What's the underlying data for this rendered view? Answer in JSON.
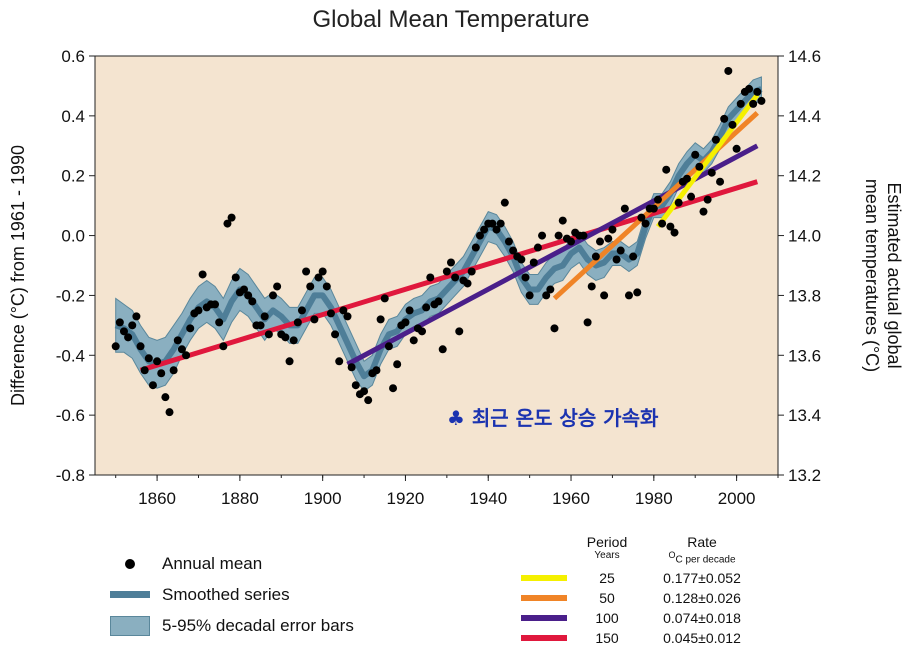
{
  "chart_data": {
    "type": "scatter",
    "title": "Global Mean Temperature",
    "ylabel": "Difference (°C) from 1961 - 1990",
    "ylabel_right": "Estimated actual global mean temperatures (°C)",
    "xlim": [
      1845,
      2010
    ],
    "ylim": [
      -0.8,
      0.6
    ],
    "ylim_right": [
      13.2,
      14.6
    ],
    "xticks": [
      "1860",
      "1880",
      "1900",
      "1920",
      "1940",
      "1960",
      "1980",
      "2000"
    ],
    "yticks": [
      "0.6",
      "0.4",
      "0.2",
      "0.0",
      "-0.2",
      "-0.4",
      "-0.6",
      "-0.8"
    ],
    "yticks_right": [
      "14.6",
      "14.4",
      "14.2",
      "14.0",
      "13.8",
      "13.6",
      "13.4",
      "13.2"
    ],
    "annotation": "♣ 최근 온도 상승 가속화",
    "colors": {
      "plot_bg": "#f4e4d0",
      "smoothed": "#4e7e98",
      "band": "#8aafc0",
      "annotation": "#1b33b0"
    },
    "annual_mean": {
      "name": "Annual mean",
      "x": [
        1850,
        1851,
        1852,
        1853,
        1854,
        1855,
        1856,
        1857,
        1858,
        1859,
        1860,
        1861,
        1862,
        1863,
        1864,
        1865,
        1866,
        1867,
        1868,
        1869,
        1870,
        1871,
        1872,
        1873,
        1874,
        1875,
        1876,
        1877,
        1878,
        1879,
        1880,
        1881,
        1882,
        1883,
        1884,
        1885,
        1886,
        1887,
        1888,
        1889,
        1890,
        1891,
        1892,
        1893,
        1894,
        1895,
        1896,
        1897,
        1898,
        1899,
        1900,
        1901,
        1902,
        1903,
        1904,
        1905,
        1906,
        1907,
        1908,
        1909,
        1910,
        1911,
        1912,
        1913,
        1914,
        1915,
        1916,
        1917,
        1918,
        1919,
        1920,
        1921,
        1922,
        1923,
        1924,
        1925,
        1926,
        1927,
        1928,
        1929,
        1930,
        1931,
        1932,
        1933,
        1934,
        1935,
        1936,
        1937,
        1938,
        1939,
        1940,
        1941,
        1942,
        1943,
        1944,
        1945,
        1946,
        1947,
        1948,
        1949,
        1950,
        1951,
        1952,
        1953,
        1954,
        1955,
        1956,
        1957,
        1958,
        1959,
        1960,
        1961,
        1962,
        1963,
        1964,
        1965,
        1966,
        1967,
        1968,
        1969,
        1970,
        1971,
        1972,
        1973,
        1974,
        1975,
        1976,
        1977,
        1978,
        1979,
        1980,
        1981,
        1982,
        1983,
        1984,
        1985,
        1986,
        1987,
        1988,
        1989,
        1990,
        1991,
        1992,
        1993,
        1994,
        1995,
        1996,
        1997,
        1998,
        1999,
        2000,
        2001,
        2002,
        2003,
        2004,
        2005,
        2006
      ],
      "y": [
        -0.37,
        -0.29,
        -0.32,
        -0.34,
        -0.3,
        -0.27,
        -0.37,
        -0.45,
        -0.41,
        -0.5,
        -0.42,
        -0.46,
        -0.54,
        -0.59,
        -0.45,
        -0.35,
        -0.38,
        -0.4,
        -0.31,
        -0.26,
        -0.25,
        -0.13,
        -0.24,
        -0.23,
        -0.23,
        -0.29,
        -0.37,
        0.04,
        0.06,
        -0.14,
        -0.19,
        -0.18,
        -0.2,
        -0.22,
        -0.3,
        -0.3,
        -0.27,
        -0.33,
        -0.2,
        -0.17,
        -0.33,
        -0.34,
        -0.42,
        -0.35,
        -0.29,
        -0.25,
        -0.12,
        -0.17,
        -0.28,
        -0.14,
        -0.12,
        -0.17,
        -0.26,
        -0.33,
        -0.42,
        -0.25,
        -0.27,
        -0.44,
        -0.5,
        -0.53,
        -0.52,
        -0.55,
        -0.46,
        -0.45,
        -0.28,
        -0.21,
        -0.37,
        -0.51,
        -0.43,
        -0.3,
        -0.29,
        -0.25,
        -0.35,
        -0.31,
        -0.32,
        -0.24,
        -0.14,
        -0.23,
        -0.22,
        -0.38,
        -0.12,
        -0.09,
        -0.14,
        -0.32,
        -0.15,
        -0.16,
        -0.12,
        -0.04,
        0.0,
        0.02,
        0.04,
        0.04,
        0.02,
        0.04,
        0.11,
        -0.02,
        -0.05,
        -0.07,
        -0.08,
        -0.14,
        -0.2,
        -0.09,
        -0.04,
        0.0,
        -0.2,
        -0.18,
        -0.31,
        0.0,
        0.05,
        -0.01,
        -0.02,
        0.01,
        0.0,
        0.0,
        -0.29,
        -0.17,
        -0.07,
        -0.02,
        -0.2,
        -0.01,
        0.02,
        -0.08,
        -0.05,
        0.09,
        -0.2,
        -0.07,
        -0.19,
        0.06,
        0.04,
        0.09,
        0.09,
        0.12,
        0.04,
        0.22,
        0.03,
        0.01,
        0.11,
        0.18,
        0.19,
        0.13,
        0.27,
        0.23,
        0.08,
        0.12,
        0.21,
        0.32,
        0.18,
        0.39,
        0.55,
        0.37,
        0.29,
        0.44,
        0.48,
        0.49,
        0.44,
        0.48,
        0.45
      ]
    },
    "smoothed": {
      "name": "Smoothed series",
      "x": [
        1850,
        1852,
        1854,
        1856,
        1858,
        1860,
        1862,
        1864,
        1866,
        1868,
        1870,
        1872,
        1874,
        1876,
        1878,
        1880,
        1882,
        1884,
        1886,
        1888,
        1890,
        1892,
        1894,
        1896,
        1898,
        1900,
        1902,
        1904,
        1906,
        1908,
        1910,
        1912,
        1914,
        1916,
        1918,
        1920,
        1922,
        1924,
        1926,
        1928,
        1930,
        1932,
        1934,
        1936,
        1938,
        1940,
        1942,
        1944,
        1946,
        1948,
        1950,
        1952,
        1954,
        1956,
        1958,
        1960,
        1962,
        1964,
        1966,
        1968,
        1970,
        1972,
        1974,
        1976,
        1978,
        1980,
        1982,
        1984,
        1986,
        1988,
        1990,
        1992,
        1994,
        1996,
        1998,
        2000,
        2002,
        2004,
        2006
      ],
      "y": [
        -0.3,
        -0.31,
        -0.33,
        -0.38,
        -0.42,
        -0.43,
        -0.42,
        -0.38,
        -0.33,
        -0.28,
        -0.24,
        -0.22,
        -0.24,
        -0.28,
        -0.22,
        -0.18,
        -0.2,
        -0.24,
        -0.28,
        -0.25,
        -0.27,
        -0.3,
        -0.3,
        -0.25,
        -0.2,
        -0.2,
        -0.24,
        -0.3,
        -0.36,
        -0.42,
        -0.47,
        -0.45,
        -0.38,
        -0.33,
        -0.32,
        -0.28,
        -0.26,
        -0.25,
        -0.22,
        -0.21,
        -0.18,
        -0.15,
        -0.12,
        -0.07,
        -0.02,
        0.03,
        0.02,
        -0.02,
        -0.07,
        -0.14,
        -0.18,
        -0.18,
        -0.14,
        -0.11,
        -0.1,
        -0.06,
        -0.04,
        -0.08,
        -0.1,
        -0.09,
        -0.06,
        -0.06,
        -0.08,
        -0.06,
        0.03,
        0.1,
        0.1,
        0.14,
        0.2,
        0.24,
        0.27,
        0.25,
        0.28,
        0.33,
        0.39,
        0.42,
        0.45,
        0.48,
        0.49
      ]
    },
    "error_band_halfwidth": [
      0.09,
      0.08,
      0.08,
      0.08,
      0.08,
      0.08,
      0.08,
      0.08,
      0.07,
      0.07,
      0.07,
      0.07,
      0.07,
      0.07,
      0.07,
      0.07,
      0.07,
      0.07,
      0.07,
      0.06,
      0.06,
      0.06,
      0.06,
      0.06,
      0.06,
      0.06,
      0.06,
      0.06,
      0.06,
      0.06,
      0.05,
      0.05,
      0.05,
      0.05,
      0.05,
      0.05,
      0.05,
      0.05,
      0.05,
      0.05,
      0.05,
      0.05,
      0.05,
      0.05,
      0.05,
      0.05,
      0.05,
      0.05,
      0.05,
      0.05,
      0.05,
      0.05,
      0.05,
      0.05,
      0.05,
      0.05,
      0.05,
      0.05,
      0.05,
      0.05,
      0.04,
      0.04,
      0.04,
      0.04,
      0.04,
      0.04,
      0.04,
      0.04,
      0.04,
      0.04,
      0.04,
      0.04,
      0.04,
      0.04,
      0.04,
      0.04,
      0.04,
      0.04,
      0.04
    ],
    "trends": [
      {
        "period": "25",
        "rate": "0.177±0.052",
        "color": "#f5f000",
        "x": [
          1981,
          2005
        ],
        "y": [
          0.03,
          0.47
        ]
      },
      {
        "period": "50",
        "rate": "0.128±0.026",
        "color": "#f08427",
        "x": [
          1956,
          2005
        ],
        "y": [
          -0.21,
          0.41
        ]
      },
      {
        "period": "100",
        "rate": "0.074±0.018",
        "color": "#4a1f8a",
        "x": [
          1906,
          2005
        ],
        "y": [
          -0.43,
          0.3
        ]
      },
      {
        "period": "150",
        "rate": "0.045±0.012",
        "color": "#e0183d",
        "x": [
          1856,
          2005
        ],
        "y": [
          -0.45,
          0.18
        ]
      }
    ]
  },
  "legend": {
    "annual_mean": "Annual mean",
    "smoothed": "Smoothed series",
    "error_bars": "5-95% decadal error bars"
  },
  "rate_table": {
    "period_header": "Period",
    "rate_header": "Rate",
    "period_sub": "Years",
    "rate_sub_unit": "O",
    "rate_sub_label": "C  per decade"
  }
}
